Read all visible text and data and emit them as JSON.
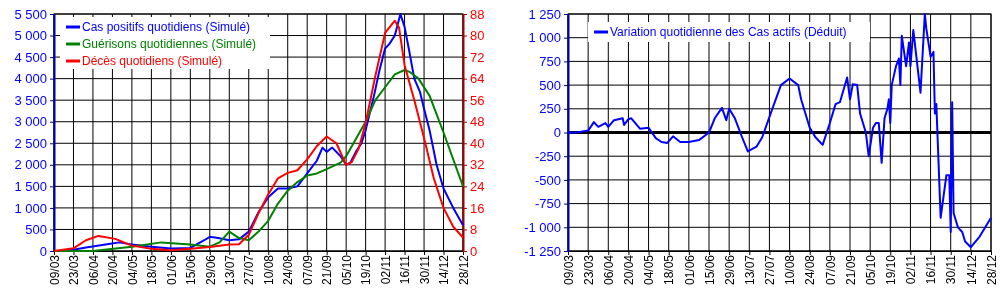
{
  "chart_data": [
    {
      "type": "line",
      "legend": "top left",
      "grid": true,
      "marker": "none",
      "line_style": "solid",
      "xlim": [
        "--03-09",
        "--12-28"
      ],
      "xticks": [
        {
          "value": "--03-09",
          "label": "09/03"
        },
        {
          "value": "--03-23",
          "label": "23/03"
        },
        {
          "value": "--04-06",
          "label": "06/04"
        },
        {
          "value": "--04-20",
          "label": "20/04"
        },
        {
          "value": "--05-04",
          "label": "04/05"
        },
        {
          "value": "--05-18",
          "label": "18/05"
        },
        {
          "value": "--06-01",
          "label": "01/06"
        },
        {
          "value": "--06-15",
          "label": "15/06"
        },
        {
          "value": "--06-29",
          "label": "29/06"
        },
        {
          "value": "--07-13",
          "label": "13/07"
        },
        {
          "value": "--07-27",
          "label": "27/07"
        },
        {
          "value": "--08-10",
          "label": "10/08"
        },
        {
          "value": "--08-24",
          "label": "24/08"
        },
        {
          "value": "--09-07",
          "label": "07/09"
        },
        {
          "value": "--09-21",
          "label": "21/09"
        },
        {
          "value": "--10-05",
          "label": "05/10"
        },
        {
          "value": "--10-19",
          "label": "19/10"
        },
        {
          "value": "--11-02",
          "label": "02/11"
        },
        {
          "value": "--11-16",
          "label": "16/11"
        },
        {
          "value": "--11-30",
          "label": "30/11"
        },
        {
          "value": "--12-14",
          "label": "14/12"
        },
        {
          "value": "--12-28",
          "label": "28/12"
        }
      ],
      "ylim": [
        0,
        5500
      ],
      "yticks": [
        0,
        500,
        {
          "value": 1000,
          "label": "1 000"
        },
        {
          "value": 1500,
          "label": "1 500"
        },
        {
          "value": 2000,
          "label": "2 000"
        },
        {
          "value": 2500,
          "label": "2 500"
        },
        {
          "value": 3000,
          "label": "3 000"
        },
        {
          "value": 3500,
          "label": "3 500"
        },
        {
          "value": 4000,
          "label": "4 000"
        },
        {
          "value": 4500,
          "label": "4 500"
        },
        {
          "value": 5000,
          "label": "5 000"
        },
        {
          "value": 5500,
          "label": "5 500"
        }
      ],
      "y2lim": [
        0,
        88
      ],
      "y2ticks": [
        0,
        8,
        16,
        24,
        32,
        40,
        48,
        56,
        64,
        72,
        80,
        88
      ],
      "series": [
        {
          "name": "Cas positifs quotidiens (Simulé)",
          "color": "#0000ff",
          "x": [
            "--03-09",
            "--03-16",
            "--03-23",
            "--04-01",
            "--04-15",
            "--04-25",
            "--05-04",
            "--05-18",
            "--06-01",
            "--06-15",
            "--06-25",
            "--06-29",
            "--07-05",
            "--07-13",
            "--07-20",
            "--07-27",
            "--08-03",
            "--08-10",
            "--08-17",
            "--08-24",
            "--08-31",
            "--09-07",
            "--09-14",
            "--09-18",
            "--09-21",
            "--09-25",
            "--10-01",
            "--10-05",
            "--10-08",
            "--10-12",
            "--10-16",
            "--10-19",
            "--10-25",
            "--10-29",
            "--11-02",
            "--11-05",
            "--11-09",
            "--11-13",
            "--11-16",
            "--11-19",
            "--11-23",
            "--11-27",
            "--11-30",
            "--12-04",
            "--12-09",
            "--12-14",
            "--12-21",
            "--12-28"
          ],
          "values": [
            0,
            0,
            30,
            80,
            150,
            200,
            150,
            100,
            60,
            70,
            250,
            330,
            300,
            250,
            270,
            450,
            900,
            1250,
            1450,
            1450,
            1500,
            1800,
            2100,
            2400,
            2300,
            2400,
            2200,
            2000,
            2050,
            2300,
            2500,
            2800,
            3600,
            4200,
            4700,
            4800,
            5000,
            5500,
            5200,
            4700,
            4000,
            3700,
            3300,
            2800,
            2000,
            1450,
            1000,
            600
          ]
        },
        {
          "name": "Guérisons quotidiennes (Simulé)",
          "color": "#008000",
          "x": [
            "--03-09",
            "--04-06",
            "--05-04",
            "--05-25",
            "--06-15",
            "--06-29",
            "--07-06",
            "--07-13",
            "--07-20",
            "--07-27",
            "--08-03",
            "--08-10",
            "--08-17",
            "--08-24",
            "--08-31",
            "--09-07",
            "--09-14",
            "--09-21",
            "--10-01",
            "--10-05",
            "--10-12",
            "--10-19",
            "--10-26",
            "--11-02",
            "--11-09",
            "--11-16",
            "--11-20",
            "--11-26",
            "--12-04",
            "--12-14",
            "--12-28"
          ],
          "values": [
            0,
            0,
            100,
            200,
            150,
            100,
            200,
            450,
            300,
            250,
            450,
            700,
            1100,
            1400,
            1600,
            1750,
            1800,
            1900,
            2050,
            2200,
            2600,
            3000,
            3500,
            3800,
            4100,
            4200,
            4150,
            4000,
            3600,
            2750,
            1500
          ]
        },
        {
          "name": "Décès quotidiens (Simulé)",
          "color": "#ff0000",
          "axis": "y2",
          "x": [
            "--03-09",
            "--03-23",
            "--04-01",
            "--04-10",
            "--04-22",
            "--05-04",
            "--05-18",
            "--06-01",
            "--06-15",
            "--06-29",
            "--07-13",
            "--07-20",
            "--07-27",
            "--08-03",
            "--08-10",
            "--08-17",
            "--08-24",
            "--08-31",
            "--09-07",
            "--09-14",
            "--09-21",
            "--09-28",
            "--10-05",
            "--10-09",
            "--10-14",
            "--10-19",
            "--10-26",
            "--11-02",
            "--11-09",
            "--11-12",
            "--11-16",
            "--11-23",
            "--11-30",
            "--12-07",
            "--12-14",
            "--12-21",
            "--12-28"
          ],
          "values": [
            0,
            1,
            4,
            5.6,
            4.5,
            2,
            0.8,
            0.3,
            0.8,
            1.5,
            2.4,
            2.5,
            6,
            14,
            21,
            27,
            29,
            30,
            34,
            39,
            42.5,
            40,
            32,
            33,
            38,
            47.5,
            65,
            81,
            85.5,
            83,
            69,
            56,
            42,
            27,
            16,
            9,
            5
          ]
        }
      ]
    },
    {
      "type": "line",
      "legend": "top left",
      "grid": true,
      "marker": "none",
      "line_style": "solid",
      "xlim": [
        "--03-09",
        "--12-28"
      ],
      "xticks": [
        {
          "value": "--03-09",
          "label": "09/03"
        },
        {
          "value": "--03-23",
          "label": "23/03"
        },
        {
          "value": "--04-06",
          "label": "06/04"
        },
        {
          "value": "--04-20",
          "label": "20/04"
        },
        {
          "value": "--05-04",
          "label": "04/05"
        },
        {
          "value": "--05-18",
          "label": "18/05"
        },
        {
          "value": "--06-01",
          "label": "01/06"
        },
        {
          "value": "--06-15",
          "label": "15/06"
        },
        {
          "value": "--06-29",
          "label": "29/06"
        },
        {
          "value": "--07-13",
          "label": "13/07"
        },
        {
          "value": "--07-27",
          "label": "27/07"
        },
        {
          "value": "--08-10",
          "label": "10/08"
        },
        {
          "value": "--08-24",
          "label": "24/08"
        },
        {
          "value": "--09-07",
          "label": "07/09"
        },
        {
          "value": "--09-21",
          "label": "21/09"
        },
        {
          "value": "--10-05",
          "label": "05/10"
        },
        {
          "value": "--10-19",
          "label": "19/10"
        },
        {
          "value": "--11-02",
          "label": "02/11"
        },
        {
          "value": "--11-16",
          "label": "16/11"
        },
        {
          "value": "--11-30",
          "label": "30/11"
        },
        {
          "value": "--12-14",
          "label": "14/12"
        },
        {
          "value": "--12-28",
          "label": "28/12"
        }
      ],
      "ylim": [
        -1250,
        1250
      ],
      "yticks": [
        {
          "value": -1250,
          "label": "-1 250"
        },
        {
          "value": -1000,
          "label": "-1 000"
        },
        -750,
        -500,
        -250,
        0,
        250,
        500,
        750,
        {
          "value": 1000,
          "label": "1 000"
        },
        {
          "value": 1250,
          "label": "1 250"
        }
      ],
      "series": [
        {
          "name": "Variation quotidienne des Cas actifs (Déduit)",
          "color": "#0000ff",
          "x": [
            "--03-09",
            "--03-15",
            "--03-23",
            "--03-27",
            "--03-30",
            "--04-04",
            "--04-06",
            "--04-10",
            "--04-16",
            "--04-17",
            "--04-20",
            "--04-22",
            "--04-28",
            "--05-04",
            "--05-09",
            "--05-13",
            "--05-17",
            "--05-21",
            "--05-26",
            "--06-01",
            "--06-08",
            "--06-15",
            "--06-19",
            "--06-24",
            "--06-27",
            "--06-29",
            "--07-03",
            "--07-08",
            "--07-12",
            "--07-18",
            "--07-22",
            "--07-29",
            "--08-04",
            "--08-10",
            "--08-16",
            "--08-18",
            "--08-24",
            "--08-28",
            "--09-02",
            "--09-07",
            "--09-11",
            "--09-14",
            "--09-19",
            "--09-21",
            "--09-23",
            "--09-26",
            "--09-28",
            "--10-02",
            "--10-04",
            "--10-07",
            "--10-09",
            "--10-11",
            "--10-13",
            "--10-15",
            "--10-17",
            "--10-18",
            "--10-19",
            "--10-20",
            "--10-23",
            "--10-25",
            "--10-26",
            "--10-27",
            "--10-30",
            "--11-01",
            "--11-02",
            "--11-04",
            "--11-09",
            "--11-12",
            "--11-13",
            "--11-16",
            "--11-18",
            "--11-19",
            "--11-20",
            "--11-23",
            "--11-27",
            "--11-29",
            "--11-30",
            "--12-01",
            "--12-02",
            "--12-05",
            "--12-08",
            "--12-10",
            "--12-14",
            "--12-20",
            "--12-28"
          ],
          "values": [
            0,
            0,
            20,
            110,
            60,
            100,
            60,
            130,
            150,
            80,
            140,
            150,
            40,
            50,
            -60,
            -100,
            -110,
            -40,
            -100,
            -100,
            -80,
            0,
            150,
            260,
            130,
            250,
            150,
            -50,
            -200,
            -150,
            -50,
            250,
            500,
            570,
            500,
            350,
            50,
            -50,
            -130,
            100,
            300,
            320,
            580,
            350,
            510,
            500,
            200,
            0,
            -250,
            50,
            100,
            100,
            -320,
            150,
            250,
            350,
            100,
            500,
            700,
            780,
            500,
            1020,
            700,
            950,
            700,
            1080,
            420,
            1250,
            1100,
            800,
            850,
            200,
            300,
            -900,
            -450,
            -450,
            -1050,
            320,
            -850,
            -1000,
            -1050,
            -1150,
            -1210,
            -1100,
            -900
          ]
        }
      ]
    }
  ]
}
